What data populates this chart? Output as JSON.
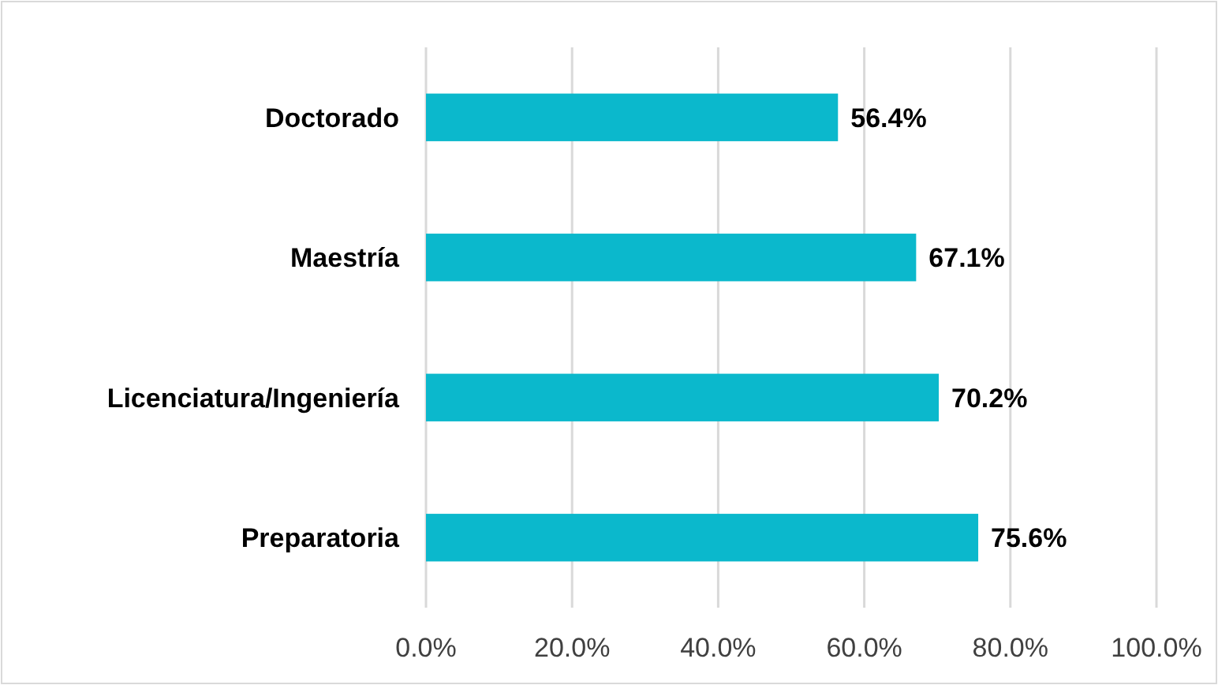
{
  "chart_data": {
    "type": "bar",
    "orientation": "horizontal",
    "categories": [
      "Doctorado",
      "Maestría",
      "Licenciatura/Ingeniería",
      "Preparatoria"
    ],
    "values": [
      56.4,
      67.1,
      70.2,
      75.6
    ],
    "color": "#0bb8cc",
    "value_labels": [
      "56.4%",
      "67.1%",
      "70.2%",
      "75.6%"
    ],
    "xlim": [
      0,
      100
    ],
    "xticks": [
      {
        "value": 0,
        "label": "0.0%"
      },
      {
        "value": 20,
        "label": "20.0%"
      },
      {
        "value": 40,
        "label": "40.0%"
      },
      {
        "value": 60,
        "label": "60.0%"
      },
      {
        "value": 80,
        "label": "80.0%"
      },
      {
        "value": 100,
        "label": "100.0%"
      }
    ],
    "grid": "x"
  }
}
